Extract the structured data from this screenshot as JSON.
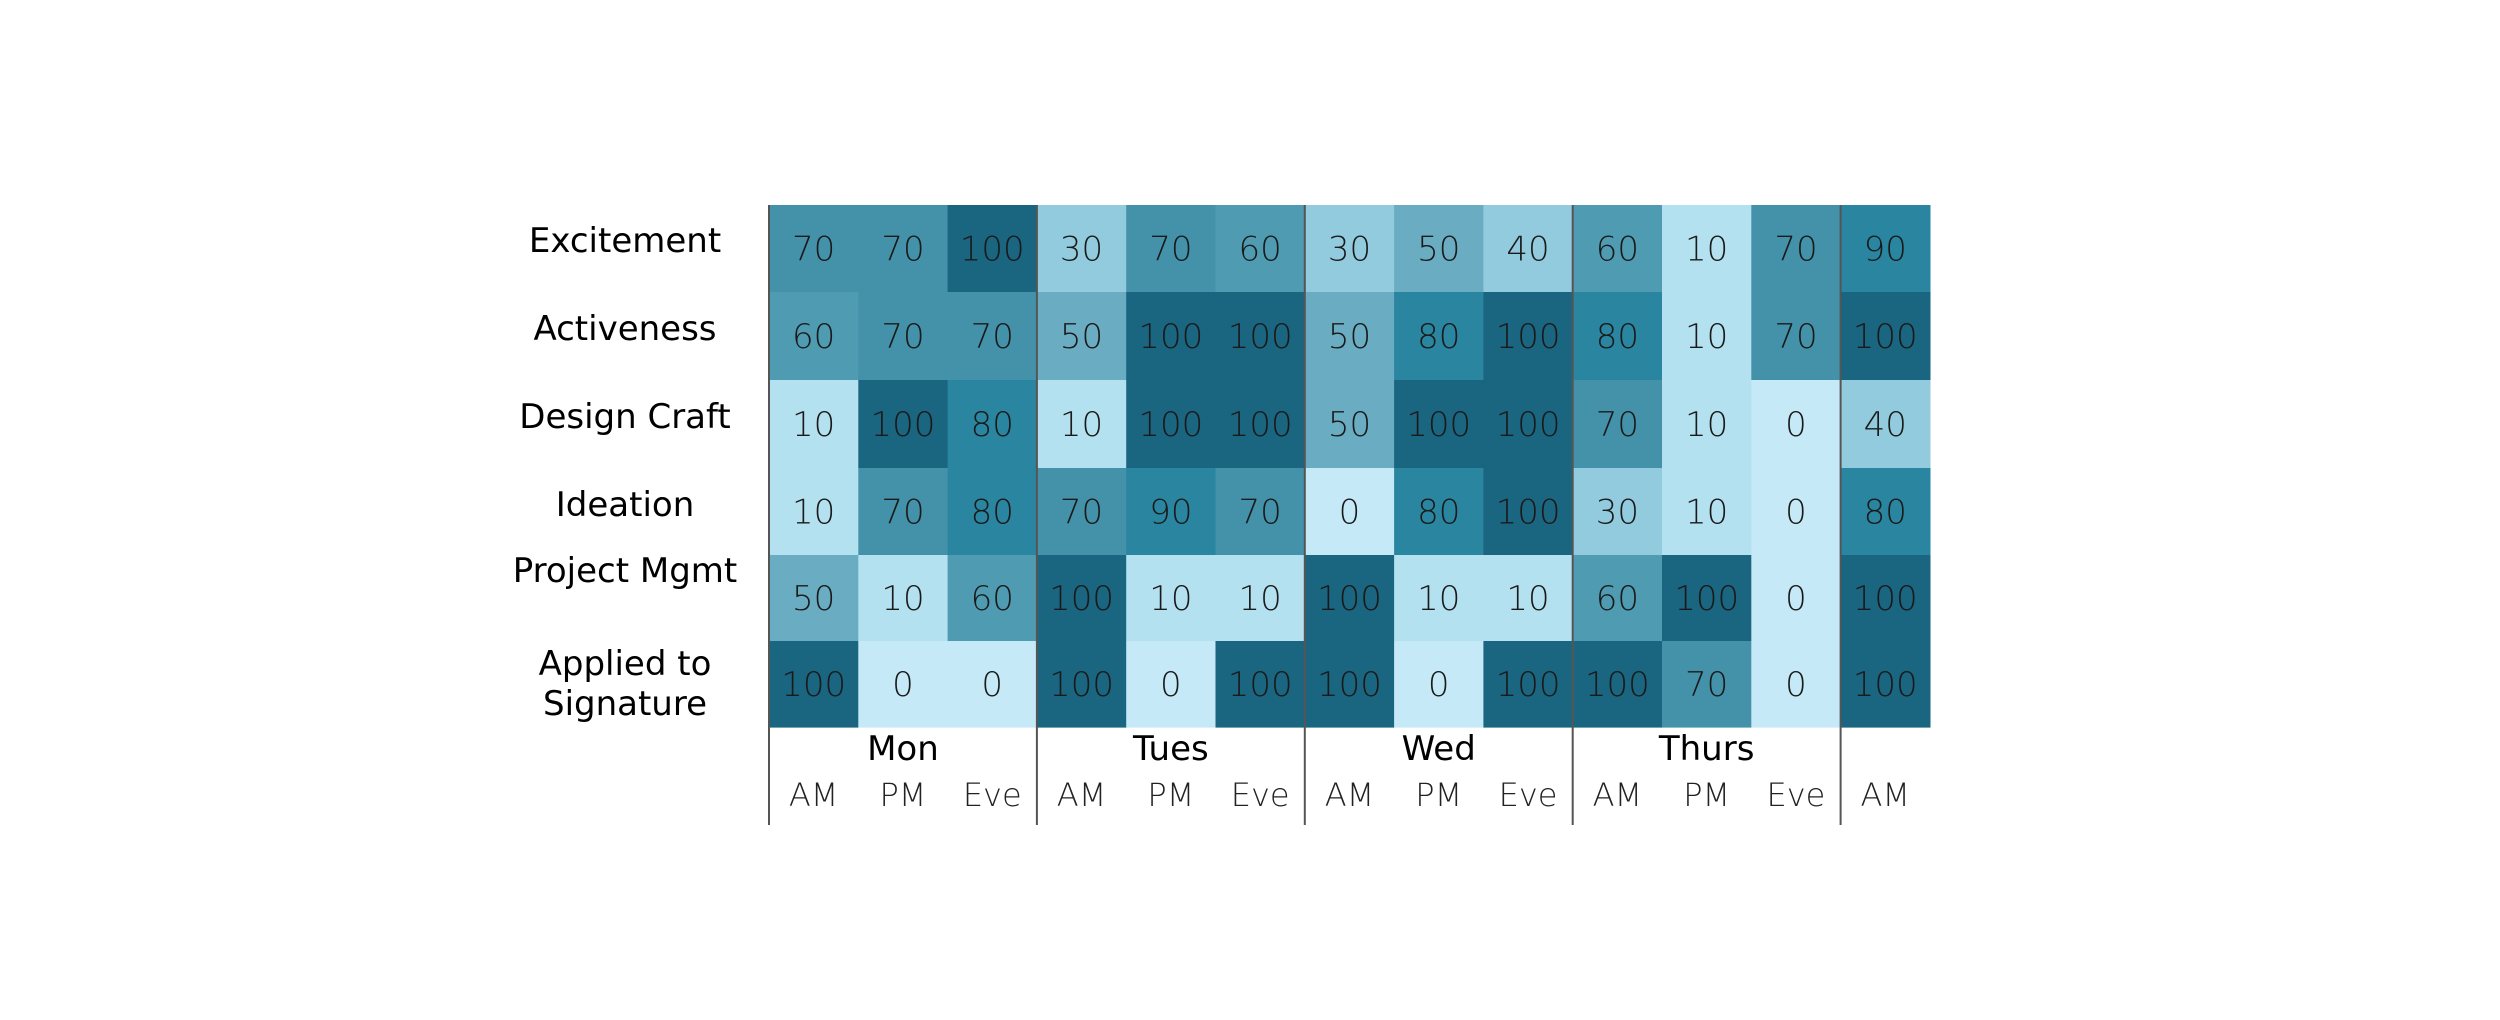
{
  "chart_data": {
    "type": "heatmap",
    "rows": [
      "Excitement",
      "Activeness",
      "Design Craft",
      "Ideation",
      "Project Mgmt",
      "Applied to Signature"
    ],
    "row_label_lines": [
      [
        "Excitement"
      ],
      [
        "Activeness"
      ],
      [
        "Design Craft"
      ],
      [
        "Ideation"
      ],
      [
        "Project Mgmt"
      ],
      [
        "Applied to",
        "Signature"
      ]
    ],
    "days": [
      {
        "name": "Mon",
        "slots": [
          "AM",
          "PM",
          "Eve"
        ]
      },
      {
        "name": "Tues",
        "slots": [
          "AM",
          "PM",
          "Eve"
        ]
      },
      {
        "name": "Wed",
        "slots": [
          "AM",
          "PM",
          "Eve"
        ]
      },
      {
        "name": "Thurs",
        "slots": [
          "AM",
          "PM",
          "Eve"
        ]
      },
      {
        "name": "",
        "slots": [
          "AM"
        ]
      }
    ],
    "values": [
      [
        70,
        70,
        100,
        30,
        70,
        60,
        30,
        50,
        40,
        60,
        10,
        70,
        90
      ],
      [
        60,
        70,
        70,
        50,
        100,
        100,
        50,
        80,
        100,
        80,
        10,
        70,
        100
      ],
      [
        10,
        100,
        80,
        10,
        100,
        100,
        50,
        100,
        100,
        70,
        10,
        0,
        40
      ],
      [
        10,
        70,
        80,
        70,
        90,
        70,
        0,
        80,
        100,
        30,
        10,
        0,
        80
      ],
      [
        50,
        10,
        60,
        100,
        10,
        10,
        100,
        10,
        10,
        60,
        100,
        0,
        100
      ],
      [
        100,
        0,
        0,
        100,
        0,
        100,
        100,
        0,
        100,
        100,
        70,
        0,
        100
      ]
    ],
    "color_scale": {
      "0": "#c5e9f7",
      "10": "#b4e1f0",
      "30": "#92cbdd",
      "40": "#92cbdd",
      "50": "#6aadc2",
      "60": "#4f9bb2",
      "70": "#4492a9",
      "80": "#2a86a0",
      "90": "#2a86a0",
      "100": "#1a6580"
    },
    "divider_color": "#555555"
  }
}
